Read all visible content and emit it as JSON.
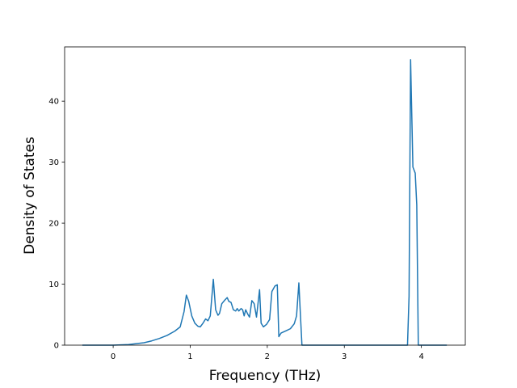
{
  "chart_data": {
    "type": "line",
    "x_label": "Frequency (THz)",
    "y_label": "Density of States",
    "xlim": [
      -0.63,
      4.57
    ],
    "ylim": [
      0,
      48.9
    ],
    "xticks": [
      0,
      1,
      2,
      3,
      4
    ],
    "yticks": [
      0,
      10,
      20,
      30,
      40
    ],
    "series": [
      {
        "color": "#1f77b4",
        "x": [
          -0.4,
          0,
          0.2,
          0.4,
          0.5,
          0.6,
          0.7,
          0.8,
          0.87,
          0.92,
          0.95,
          0.98,
          1.02,
          1.06,
          1.1,
          1.13,
          1.16,
          1.2,
          1.23,
          1.26,
          1.3,
          1.33,
          1.36,
          1.38,
          1.41,
          1.45,
          1.48,
          1.5,
          1.53,
          1.56,
          1.59,
          1.61,
          1.63,
          1.66,
          1.68,
          1.7,
          1.72,
          1.75,
          1.77,
          1.8,
          1.83,
          1.86,
          1.9,
          1.92,
          1.95,
          1.99,
          2.03,
          2.06,
          2.1,
          2.13,
          2.15,
          2.18,
          2.25,
          2.3,
          2.35,
          2.38,
          2.41,
          2.43,
          2.45,
          3.0,
          3.82,
          3.84,
          3.86,
          3.89,
          3.92,
          3.94,
          3.96,
          4.33
        ],
        "values": [
          0,
          0,
          0.1,
          0.4,
          0.7,
          1.1,
          1.6,
          2.3,
          3.0,
          5.5,
          8.2,
          7.2,
          4.8,
          3.6,
          3.1,
          3.0,
          3.5,
          4.3,
          4.0,
          4.8,
          10.8,
          5.8,
          4.9,
          5.2,
          6.8,
          7.4,
          7.8,
          7.2,
          7.0,
          5.8,
          5.6,
          6.0,
          5.6,
          6.0,
          5.8,
          4.8,
          5.8,
          5.0,
          4.6,
          7.3,
          6.8,
          4.6,
          9.1,
          3.6,
          3.0,
          3.4,
          4.2,
          8.8,
          9.7,
          9.9,
          1.4,
          2.0,
          2.4,
          2.7,
          3.5,
          4.8,
          10.2,
          5.0,
          0,
          0,
          0,
          8,
          46.8,
          29.2,
          28.2,
          23,
          0,
          0
        ]
      }
    ]
  }
}
